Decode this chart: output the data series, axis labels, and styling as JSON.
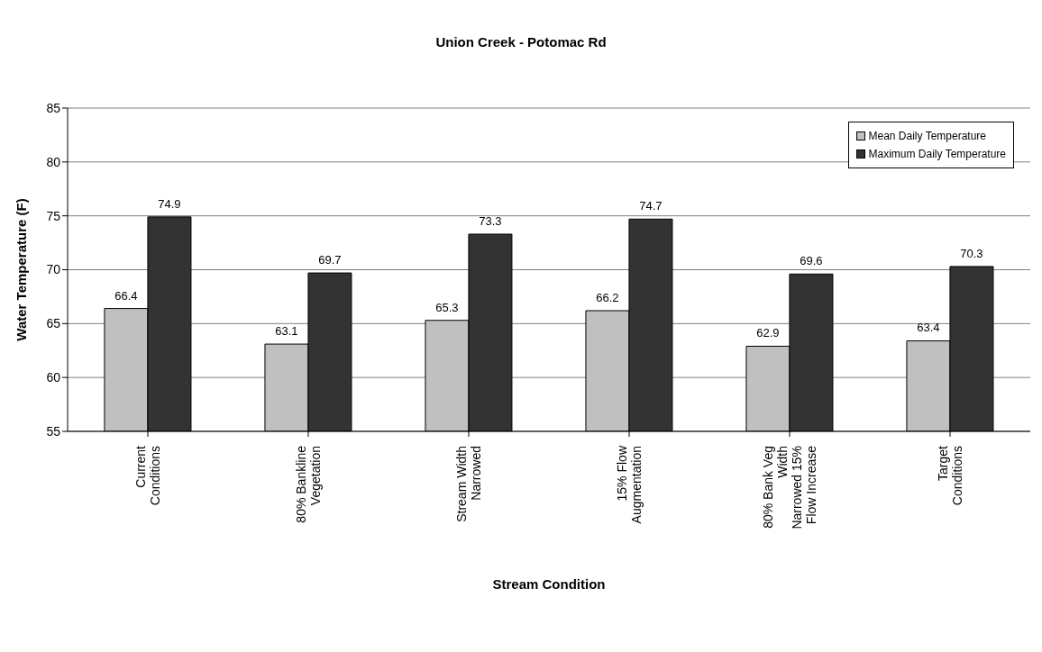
{
  "chart_data": {
    "type": "bar",
    "title": "Union Creek - Potomac Rd",
    "xlabel": "Stream Condition",
    "ylabel": "Water Temperature (F)",
    "categories": [
      "Current Conditions",
      "80% Bankline Vegetation",
      "Stream Width Narrowed",
      "15% Flow Augmentation",
      "80% Bank Veg Width Narrowed 15% Flow Increase",
      "Target Conditions"
    ],
    "series": [
      {
        "name": "Mean Daily Temperature",
        "color": "#c0c0c0",
        "values": [
          66.4,
          63.1,
          65.3,
          66.2,
          62.9,
          63.4
        ]
      },
      {
        "name": "Maximum Daily Temperature",
        "color": "#333333",
        "values": [
          74.9,
          69.7,
          73.3,
          74.7,
          69.6,
          70.3
        ]
      }
    ],
    "ylim": [
      55,
      85
    ],
    "yticks": [
      55,
      60,
      65,
      70,
      75,
      80,
      85
    ],
    "grid": "y",
    "legend": "top right",
    "data_labels": true
  }
}
